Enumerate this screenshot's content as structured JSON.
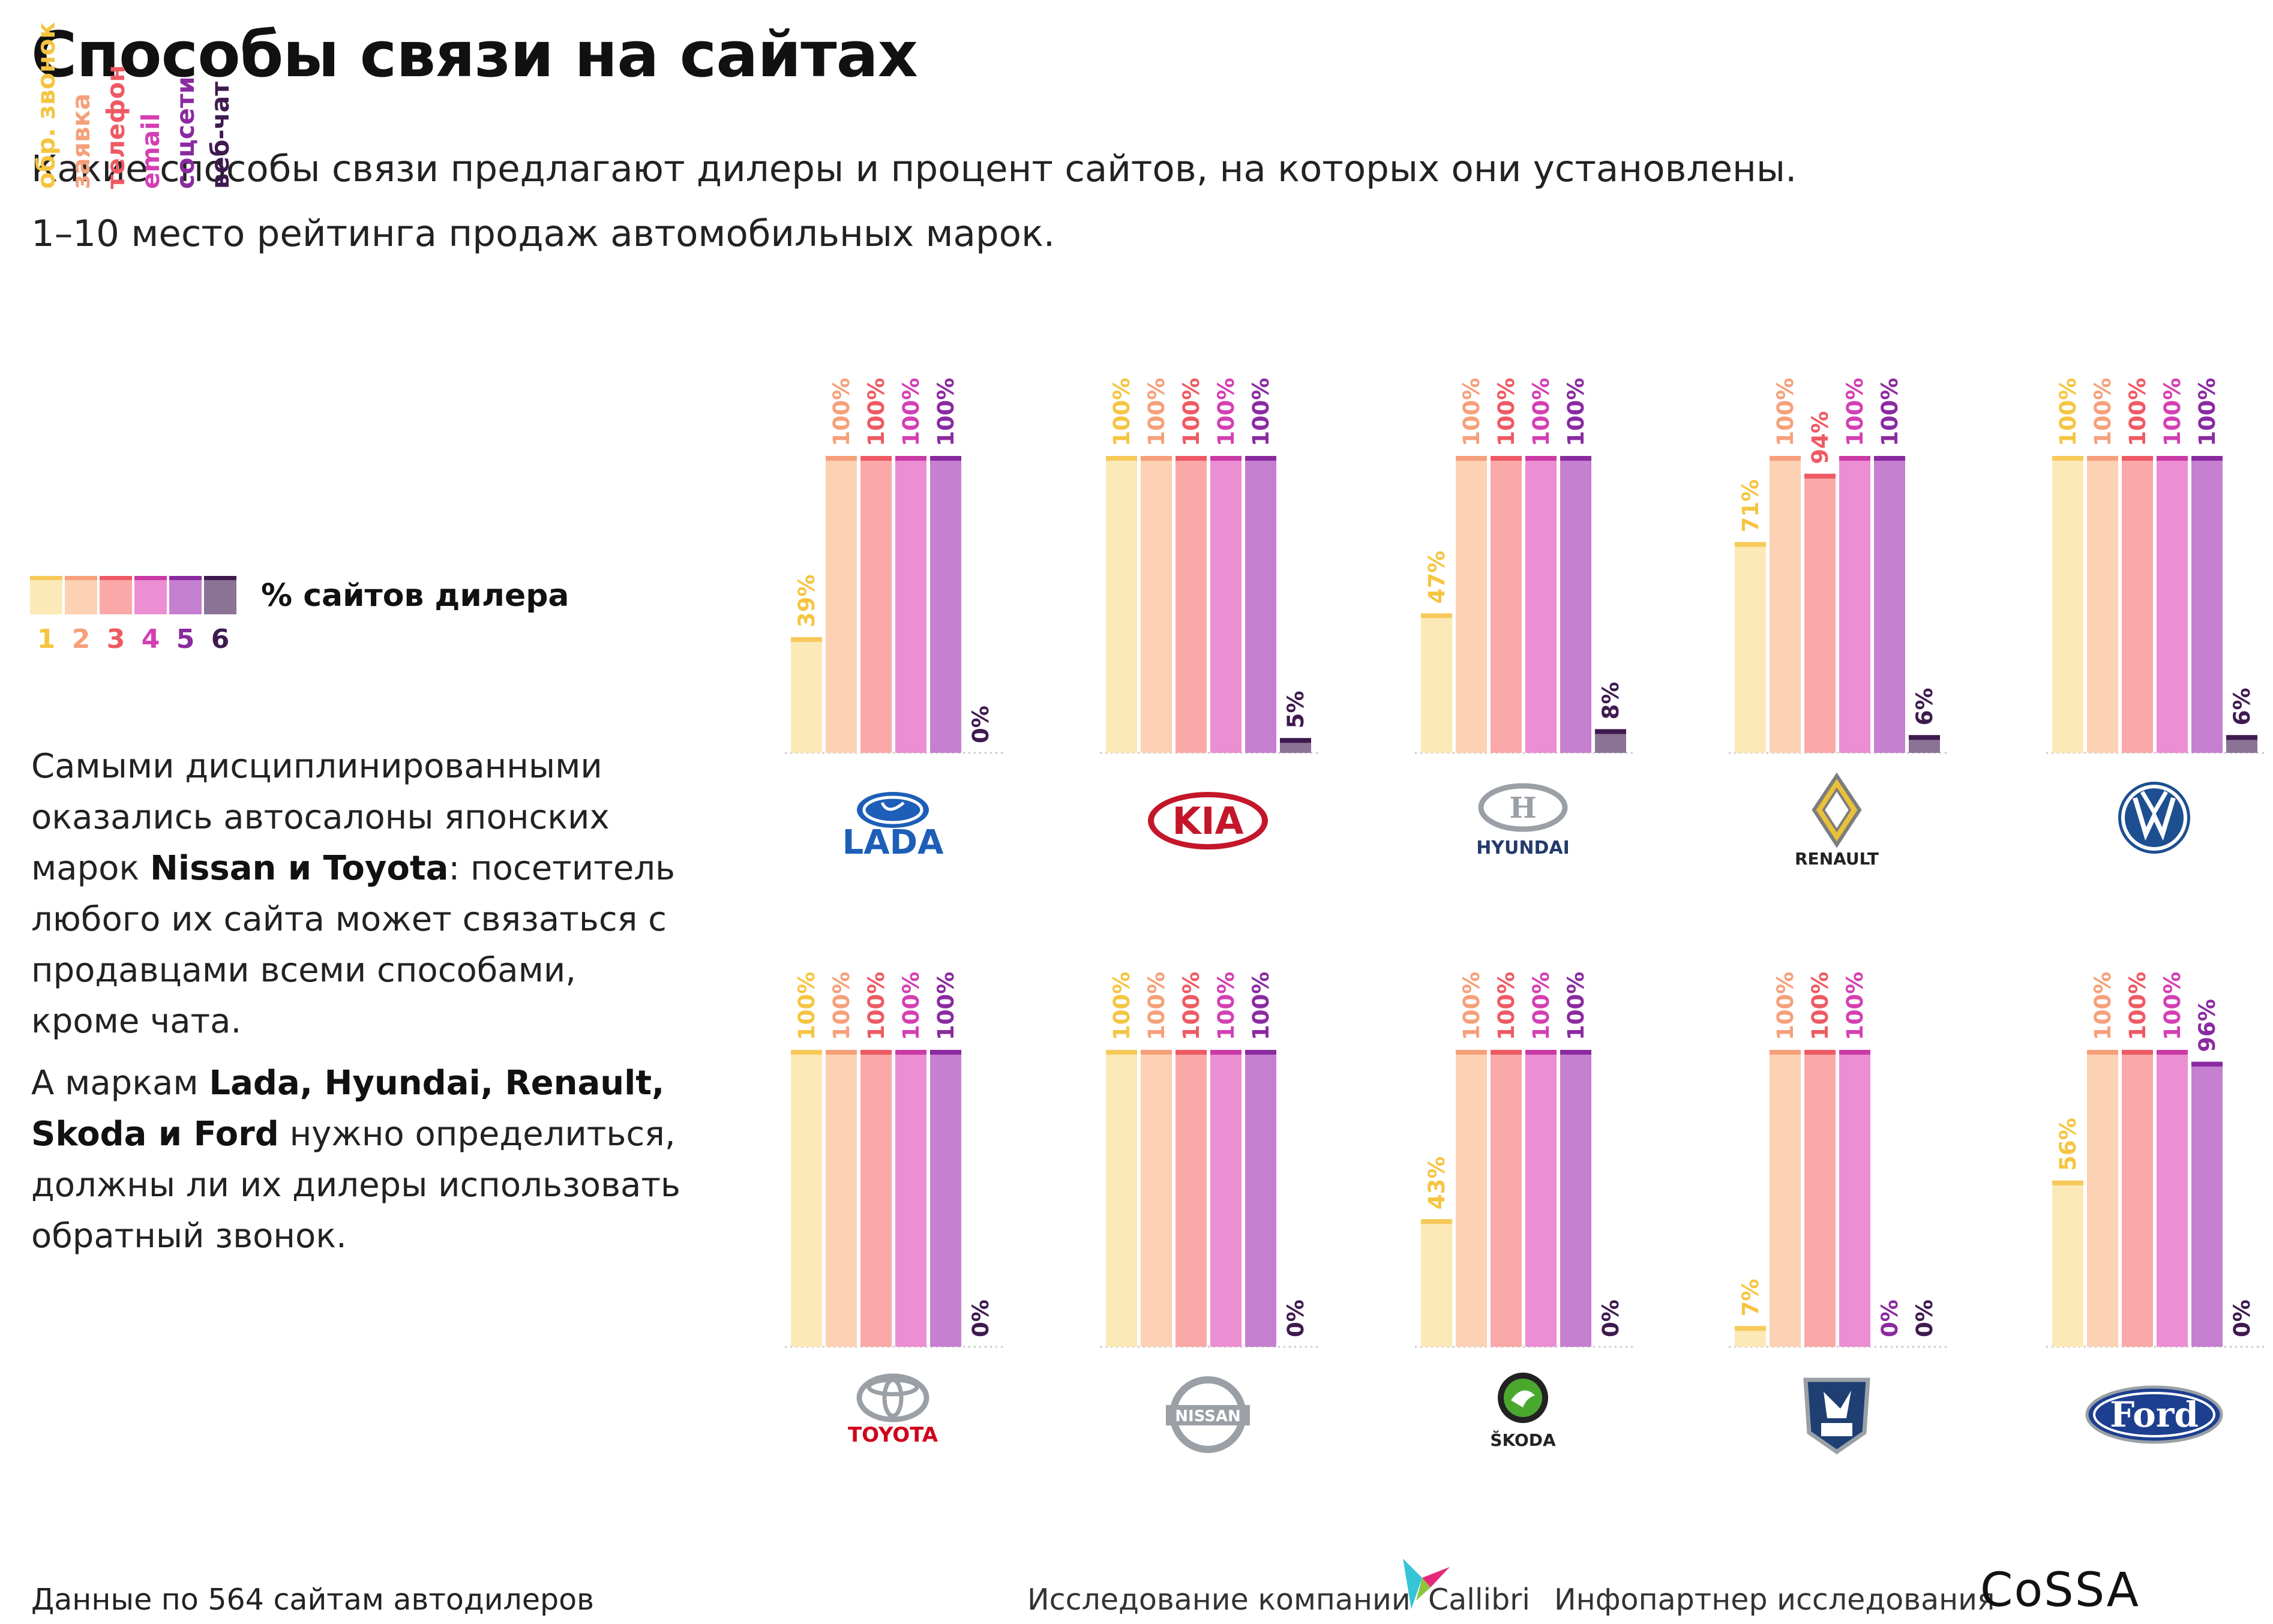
{
  "header": {
    "title": "Способы связи на сайтах",
    "subtitle_line1": "Какие способы связи предлагают дилеры и процент сайтов, на которых они установлены.",
    "subtitle_line2": "1–10 место рейтинга продаж автомобильных марок."
  },
  "legend": {
    "label": "% сайтов дилера",
    "items": [
      {
        "num": "1",
        "name": "обр. звонок",
        "color": "#fbe9b8",
        "cap": "#f7c95a",
        "text_color": "#f5c542"
      },
      {
        "num": "2",
        "name": "заявка",
        "color": "#fcd1b4",
        "cap": "#f5a07a",
        "text_color": "#f5a07a"
      },
      {
        "num": "3",
        "name": "телефон",
        "color": "#fba8a8",
        "cap": "#ee5a63",
        "text_color": "#ee5a63"
      },
      {
        "num": "4",
        "name": "email",
        "color": "#eb8ed2",
        "cap": "#c93aa6",
        "text_color": "#d43fb3"
      },
      {
        "num": "5",
        "name": "соцсети",
        "color": "#c680d0",
        "cap": "#8a2aa0",
        "text_color": "#8a2aa0"
      },
      {
        "num": "6",
        "name": "веб-чат",
        "color": "#8b7396",
        "cap": "#3e1a4f",
        "text_color": "#3e1a4f"
      }
    ]
  },
  "commentary": {
    "p1_a": "Самыми дисциплинированными оказались автосалоны японских марок ",
    "p1_bold": "Nissan и Toyota",
    "p1_b": ": посетитель любого их сайта может связаться с продавцами всеми способами, кроме чата.",
    "p2_a": "А маркам ",
    "p2_bold": "Lada, Hyundai, Renault, Skoda и Ford",
    "p2_b": " нужно определиться, должны ли их дилеры использовать обратный звонок."
  },
  "brand_logos": {
    "lada": "LADA",
    "kia": "KIA",
    "hyundai": "HYUNDAI",
    "renault": "RENAULT",
    "toyota": "TOYOTA",
    "nissan": "NISSAN",
    "skoda": "ŠKODA",
    "ford": "Ford"
  },
  "chart_data": {
    "type": "bar",
    "unit": "%",
    "ylim": [
      0,
      100
    ],
    "series_names": [
      "обр. звонок",
      "заявка",
      "телефон",
      "email",
      "соцсети",
      "веб-чат"
    ],
    "groups": [
      {
        "brand": "Lada",
        "logo_text": "LADA",
        "values": [
          39,
          100,
          100,
          100,
          100,
          0
        ]
      },
      {
        "brand": "Kia",
        "logo_text": "KIA",
        "values": [
          100,
          100,
          100,
          100,
          100,
          5
        ]
      },
      {
        "brand": "Hyundai",
        "logo_text": "HYUNDAI",
        "values": [
          47,
          100,
          100,
          100,
          100,
          8
        ]
      },
      {
        "brand": "Renault",
        "logo_text": "RENAULT",
        "values": [
          71,
          100,
          94,
          100,
          100,
          6
        ]
      },
      {
        "brand": "Volkswagen",
        "logo_text": "",
        "values": [
          100,
          100,
          100,
          100,
          100,
          6
        ]
      },
      {
        "brand": "Toyota",
        "logo_text": "TOYOTA",
        "values": [
          100,
          100,
          100,
          100,
          100,
          0
        ]
      },
      {
        "brand": "Nissan",
        "logo_text": "NISSAN",
        "values": [
          100,
          100,
          100,
          100,
          100,
          0
        ]
      },
      {
        "brand": "Skoda",
        "logo_text": "ŠKODA",
        "values": [
          43,
          100,
          100,
          100,
          100,
          0
        ]
      },
      {
        "brand": "GAZ",
        "logo_text": "",
        "values": [
          7,
          100,
          100,
          100,
          0,
          0
        ]
      },
      {
        "brand": "Ford",
        "logo_text": "Ford",
        "values": [
          56,
          100,
          100,
          100,
          96,
          0
        ]
      }
    ]
  },
  "footer": {
    "source": "Данные по 564 сайтам автодилеров",
    "research_by": "Исследование компании",
    "callibri": "Callibri",
    "info_partner": "Инфопартнер исследования",
    "cossa": "CoSSA"
  }
}
